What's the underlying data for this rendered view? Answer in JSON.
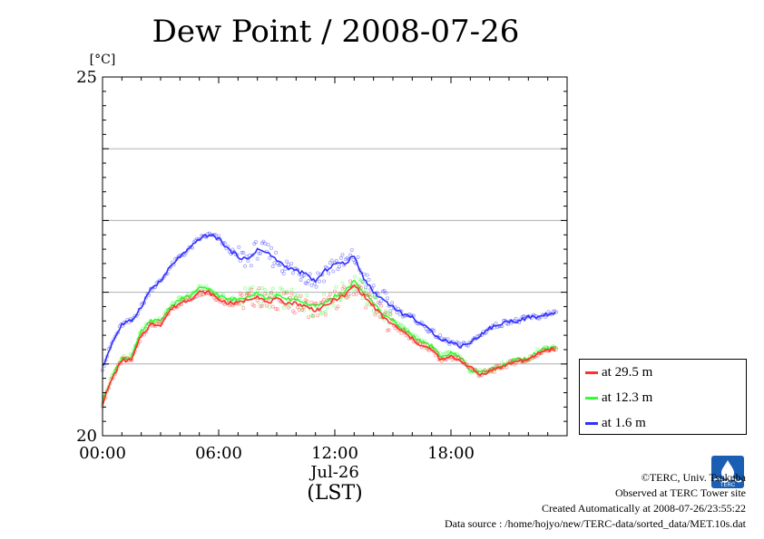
{
  "chart_data": {
    "type": "line",
    "title": "Dew Point / 2008-07-26",
    "ylabel": "[°C]",
    "ylim": [
      20,
      25
    ],
    "yticks": [
      "25",
      "20"
    ],
    "xlim": [
      0,
      24
    ],
    "xticks": [
      {
        "value": 0,
        "label": "00:00"
      },
      {
        "value": 6,
        "label": "06:00"
      },
      {
        "value": 12,
        "label": "12:00"
      },
      {
        "value": 18,
        "label": "18:00"
      }
    ],
    "xdate_label": "Jul-26",
    "xunit_label": "(LST)",
    "grid": true,
    "legend_position": "right",
    "series": [
      {
        "name": "at 29.5 m",
        "color": "#ff3030",
        "x": [
          0,
          0.5,
          1,
          1.5,
          2,
          2.5,
          3,
          3.5,
          4,
          4.5,
          5,
          5.5,
          6,
          6.5,
          7,
          7.5,
          8,
          8.5,
          9,
          9.5,
          10,
          10.5,
          11,
          11.5,
          12,
          12.5,
          13,
          13.5,
          14,
          14.5,
          15,
          15.5,
          16,
          16.5,
          17,
          17.5,
          18,
          18.5,
          19,
          19.5,
          20,
          20.5,
          21,
          21.5,
          22,
          22.5,
          23,
          23.5
        ],
        "y": [
          20.45,
          20.8,
          21.05,
          21.05,
          21.4,
          21.55,
          21.55,
          21.75,
          21.85,
          21.9,
          22.0,
          22.0,
          21.9,
          21.85,
          21.85,
          21.9,
          21.95,
          21.85,
          21.9,
          21.85,
          21.85,
          21.8,
          21.75,
          21.8,
          21.9,
          21.95,
          22.1,
          21.95,
          21.8,
          21.65,
          21.55,
          21.45,
          21.35,
          21.25,
          21.2,
          21.05,
          21.1,
          21.05,
          20.95,
          20.85,
          20.9,
          20.95,
          21.0,
          21.05,
          21.05,
          21.15,
          21.2,
          21.2
        ]
      },
      {
        "name": "at 12.3 m",
        "color": "#30ff30",
        "x": [
          0,
          0.5,
          1,
          1.5,
          2,
          2.5,
          3,
          3.5,
          4,
          4.5,
          5,
          5.5,
          6,
          6.5,
          7,
          7.5,
          8,
          8.5,
          9,
          9.5,
          10,
          10.5,
          11,
          11.5,
          12,
          12.5,
          13,
          13.5,
          14,
          14.5,
          15,
          15.5,
          16,
          16.5,
          17,
          17.5,
          18,
          18.5,
          19,
          19.5,
          20,
          20.5,
          21,
          21.5,
          22,
          22.5,
          23,
          23.5
        ],
        "y": [
          20.48,
          20.83,
          21.08,
          21.1,
          21.45,
          21.6,
          21.6,
          21.8,
          21.9,
          21.95,
          22.05,
          22.05,
          21.95,
          21.9,
          21.9,
          21.95,
          22.0,
          21.9,
          21.95,
          21.9,
          21.9,
          21.85,
          21.8,
          21.85,
          21.95,
          22.0,
          22.15,
          22.0,
          21.85,
          21.7,
          21.6,
          21.5,
          21.4,
          21.3,
          21.25,
          21.1,
          21.15,
          21.1,
          20.9,
          20.88,
          20.92,
          20.97,
          21.02,
          21.07,
          21.07,
          21.17,
          21.22,
          21.22
        ]
      },
      {
        "name": "at 1.6 m",
        "color": "#3030ff",
        "x": [
          0,
          0.5,
          1,
          1.5,
          2,
          2.5,
          3,
          3.5,
          4,
          4.5,
          5,
          5.5,
          6,
          6.5,
          7,
          7.5,
          8,
          8.5,
          9,
          9.5,
          10,
          10.5,
          11,
          11.5,
          12,
          12.5,
          13,
          13.5,
          14,
          14.5,
          15,
          15.5,
          16,
          16.5,
          17,
          17.5,
          18,
          18.5,
          19,
          19.5,
          20,
          20.5,
          21,
          21.5,
          22,
          22.5,
          23,
          23.5
        ],
        "y": [
          20.95,
          21.3,
          21.55,
          21.6,
          21.8,
          22.05,
          22.15,
          22.35,
          22.5,
          22.6,
          22.75,
          22.8,
          22.75,
          22.6,
          22.5,
          22.45,
          22.6,
          22.55,
          22.45,
          22.35,
          22.3,
          22.25,
          22.15,
          22.3,
          22.4,
          22.4,
          22.5,
          22.2,
          22.0,
          21.9,
          21.8,
          21.7,
          21.65,
          21.55,
          21.45,
          21.35,
          21.3,
          21.25,
          21.3,
          21.4,
          21.5,
          21.55,
          21.6,
          21.6,
          21.65,
          21.65,
          21.7,
          21.7
        ]
      }
    ]
  },
  "footer": {
    "copyright": "©TERC, Univ. Tsukuba",
    "observed": "Observed at TERC Tower site",
    "created": "Created Automatically at 2008-07-26/23:55:22",
    "source": "Data source : /home/hojyo/new/TERC-data/sorted_data/MET.10s.dat"
  },
  "logo_text": "TERC"
}
